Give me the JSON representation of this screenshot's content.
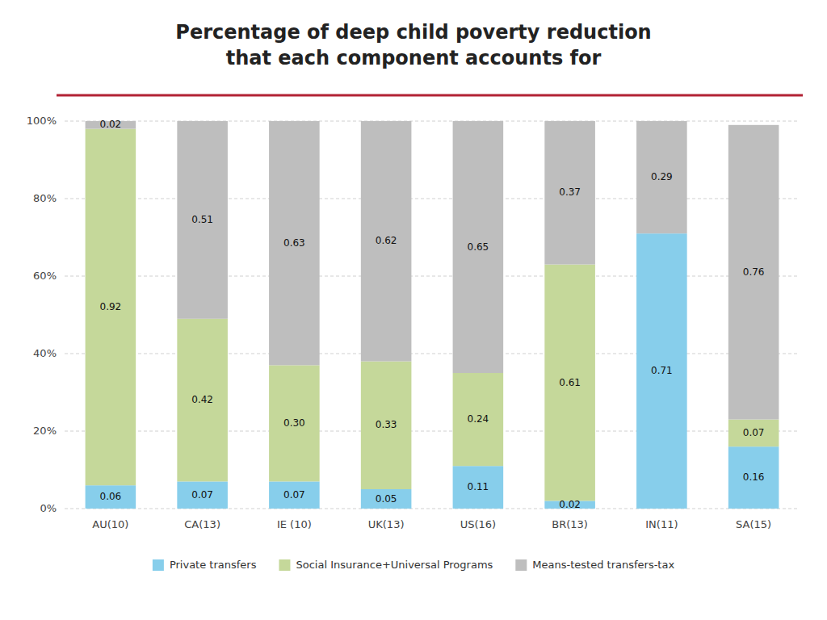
{
  "chart_data": {
    "type": "bar",
    "stacked": true,
    "title": "Percentage of deep child poverty reduction\nthat each component accounts for",
    "categories": [
      "AU(10)",
      "CA(13)",
      "IE (10)",
      "UK(13)",
      "US(16)",
      "BR(13)",
      "IN(11)",
      "SA(15)"
    ],
    "series": [
      {
        "name": "Private transfers",
        "color": "#87CEEB",
        "values": [
          0.06,
          0.07,
          0.07,
          0.05,
          0.11,
          0.02,
          0.71,
          0.16
        ],
        "value_labels": [
          "0.06",
          "0.07",
          "0.07",
          "0.05",
          "0.11",
          "0.02",
          "0.71",
          "0.16"
        ]
      },
      {
        "name": "Social Insurance+Universal Programs",
        "color": "#C5D89A",
        "values": [
          0.92,
          0.42,
          0.3,
          0.33,
          0.24,
          0.61,
          0.0,
          0.07
        ],
        "value_labels": [
          "0.92",
          "0.42",
          "0.30",
          "0.33",
          "0.24",
          "0.61",
          null,
          "0.07"
        ]
      },
      {
        "name": "Means-tested transfers-tax",
        "color": "#BEBEBE",
        "values": [
          0.02,
          0.51,
          0.63,
          0.62,
          0.65,
          0.37,
          0.29,
          0.76
        ],
        "value_labels": [
          "0.02",
          "0.51",
          "0.63",
          "0.62",
          "0.65",
          "0.37",
          "0.29",
          "0.76"
        ]
      }
    ],
    "ylim": [
      0,
      1.0
    ],
    "yticks": [
      {
        "value": 0.0,
        "label": "0%"
      },
      {
        "value": 0.2,
        "label": "20%"
      },
      {
        "value": 0.4,
        "label": "40%"
      },
      {
        "value": 0.6,
        "label": "60%"
      },
      {
        "value": 0.8,
        "label": "80%"
      },
      {
        "value": 1.0,
        "label": "100%"
      }
    ],
    "grid": true,
    "data_labels": true,
    "legend": "bottom"
  }
}
